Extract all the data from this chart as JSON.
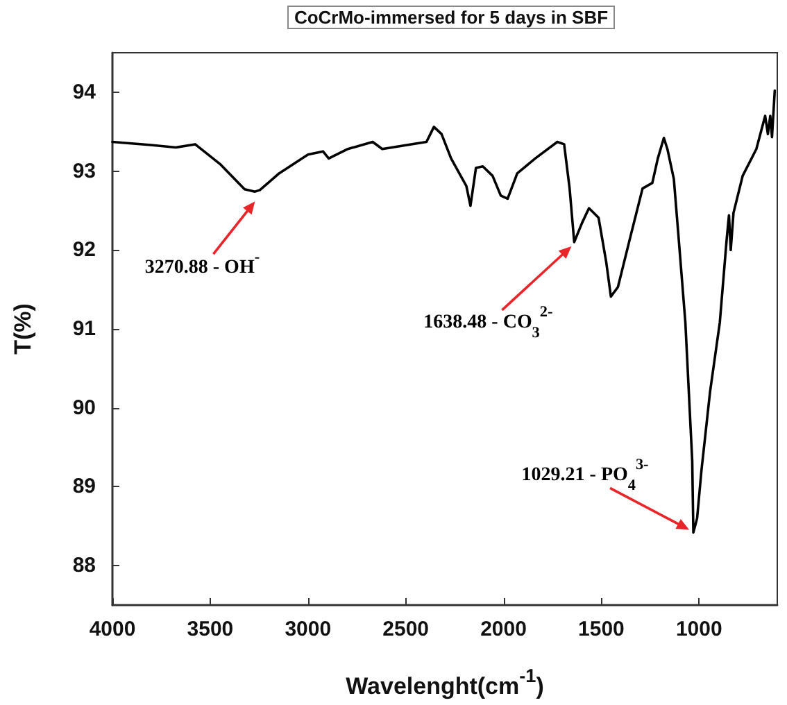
{
  "chart_data": {
    "type": "line",
    "title": "CoCrMo-immersed for 5 days in SBF",
    "xlabel": "Wavelenght(cm$^{-1}$)",
    "ylabel": "T(%)",
    "x": [
      4000,
      3803,
      3676,
      3577,
      3450,
      3324,
      3270.88,
      3246,
      3148,
      3000,
      2923,
      2894,
      2796,
      2669,
      2620,
      2472,
      2394,
      2356,
      2317,
      2268,
      2190,
      2169,
      2141,
      2106,
      2056,
      2014,
      1979,
      1930,
      1838,
      1725,
      1690,
      1662,
      1638.48,
      1599,
      1563,
      1514,
      1475,
      1451,
      1415,
      1352,
      1289,
      1239,
      1211,
      1180,
      1162,
      1129,
      1106,
      1070,
      1035,
      1029.21,
      1010,
      988,
      944,
      894,
      859,
      847,
      838,
      824,
      777,
      707,
      662,
      648,
      636,
      627,
      613
    ],
    "series": [
      {
        "color": "#000000",
        "values": [
          93.37,
          93.33,
          93.3,
          93.34,
          93.09,
          92.77,
          92.74,
          92.76,
          92.97,
          93.21,
          93.25,
          93.16,
          93.28,
          93.37,
          93.28,
          93.34,
          93.37,
          93.56,
          93.47,
          93.16,
          92.81,
          92.56,
          93.04,
          93.06,
          92.94,
          92.69,
          92.65,
          92.97,
          93.16,
          93.37,
          93.34,
          92.78,
          92.1,
          92.34,
          92.53,
          92.41,
          91.85,
          91.41,
          91.53,
          92.16,
          92.78,
          92.85,
          93.16,
          93.42,
          93.28,
          92.9,
          92.2,
          91.08,
          89.33,
          88.42,
          88.6,
          89.2,
          90.2,
          91.08,
          92.13,
          92.44,
          92.0,
          92.47,
          92.94,
          93.28,
          93.7,
          93.47,
          93.7,
          93.43,
          94.02
        ]
      }
    ],
    "xlim": [
      4000,
      600
    ],
    "xticks": [
      4000,
      3500,
      3000,
      2500,
      2000,
      1500,
      1000
    ],
    "ylim": [
      87.5,
      94.5
    ],
    "yticks": [
      88,
      89,
      90,
      91,
      92,
      93,
      94
    ],
    "marker": "none",
    "line_style": "solid",
    "annotations": [
      {
        "text": "3270.88 - OH$^{-}$",
        "x": 3270.88,
        "y": 92.74
      },
      {
        "text": "1638.48 - CO$_{3}$$^{2-}$",
        "x": 1638.48,
        "y": 92.1
      },
      {
        "text": "1029.21 - PO$_{4}$$^{3-}$",
        "x": 1029.21,
        "y": 88.42
      }
    ]
  }
}
